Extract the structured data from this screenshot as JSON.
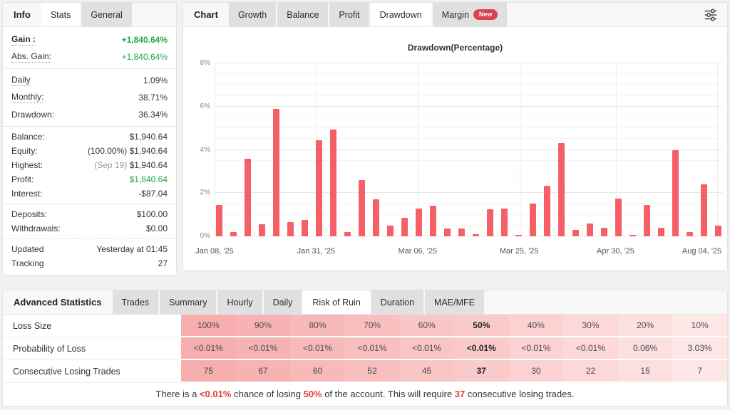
{
  "colors": {
    "green": "#21a84b",
    "bar_red": "#f55f66",
    "badge_red": "#d9424e",
    "note_red": "#e23b3b"
  },
  "left_panel": {
    "section_label": "Info",
    "tabs": [
      {
        "label": "Stats",
        "active": true
      },
      {
        "label": "General",
        "active": false
      }
    ],
    "stats": {
      "gain": {
        "label": "Gain :",
        "value": "+1,840.64%"
      },
      "abs_gain": {
        "label": "Abs. Gain:",
        "value": "+1,840.64%"
      },
      "daily": {
        "label": "Daily",
        "value": "1.09%"
      },
      "monthly": {
        "label": "Monthly:",
        "value": "38.71%"
      },
      "drawdown": {
        "label": "Drawdown:",
        "value": "36.34%"
      },
      "balance": {
        "label": "Balance:",
        "value": "$1,940.64"
      },
      "equity": {
        "label": "Equity:",
        "prefix": "(100.00%)",
        "value": "$1,940.64"
      },
      "highest": {
        "label": "Highest:",
        "prefix": "(Sep 19)",
        "value": "$1,940.64"
      },
      "profit": {
        "label": "Profit:",
        "value": "$1,840.64"
      },
      "interest": {
        "label": "Interest:",
        "value": "-$87.04"
      },
      "deposits": {
        "label": "Deposits:",
        "value": "$100.00"
      },
      "withdrawals": {
        "label": "Withdrawals:",
        "value": "$0.00"
      },
      "updated": {
        "label": "Updated",
        "value": "Yesterday at 01:45"
      },
      "tracking": {
        "label": "Tracking",
        "value": "27"
      }
    }
  },
  "chart_panel": {
    "section_label": "Chart",
    "tabs": [
      {
        "label": "Growth"
      },
      {
        "label": "Balance"
      },
      {
        "label": "Profit"
      },
      {
        "label": "Drawdown",
        "active": true
      },
      {
        "label": "Margin",
        "badge": "New"
      }
    ]
  },
  "chart_data": {
    "type": "bar",
    "title": "Drawdown(Percentage)",
    "xlabel": "",
    "ylabel": "",
    "ylim": [
      0,
      8
    ],
    "grid": true,
    "legend": false,
    "bar_color": "#f55f66",
    "y_ticks": [
      "0%",
      "2%",
      "4%",
      "6%",
      "8%"
    ],
    "y_tick_values": [
      0,
      2,
      4,
      6,
      8
    ],
    "minor_step": 0.5,
    "x_ticks": [
      "Jan 08, '25",
      "Jan 31, '25",
      "Mar 06, '25",
      "Mar 25, '25",
      "Apr 30, '25",
      "Aug 04, '25"
    ],
    "x_tick_pos_pct": [
      0,
      20,
      40,
      60,
      79,
      96
    ],
    "v_grid_pct": [
      20,
      40,
      60,
      79,
      99
    ],
    "values": [
      1.45,
      0.2,
      3.6,
      0.55,
      5.9,
      0.65,
      0.75,
      4.45,
      4.95,
      0.2,
      2.6,
      1.7,
      0.5,
      0.85,
      1.3,
      1.4,
      0.35,
      0.35,
      0.1,
      1.25,
      1.3,
      0.05,
      1.5,
      2.35,
      4.3,
      0.3,
      0.6,
      0.4,
      1.75,
      0.05,
      1.45,
      0.4,
      4.0,
      0.2,
      2.4,
      0.5
    ]
  },
  "advanced_panel": {
    "section_label": "Advanced Statistics",
    "tabs": [
      {
        "label": "Trades"
      },
      {
        "label": "Summary"
      },
      {
        "label": "Hourly"
      },
      {
        "label": "Daily"
      },
      {
        "label": "Risk of Ruin",
        "active": true
      },
      {
        "label": "Duration"
      },
      {
        "label": "MAE/MFE"
      }
    ],
    "risk_table": {
      "row_labels": [
        "Loss Size",
        "Probability of Loss",
        "Consecutive Losing Trades"
      ],
      "rows": [
        [
          "100%",
          "90%",
          "80%",
          "70%",
          "60%",
          "50%",
          "40%",
          "30%",
          "20%",
          "10%"
        ],
        [
          "<0.01%",
          "<0.01%",
          "<0.01%",
          "<0.01%",
          "<0.01%",
          "<0.01%",
          "<0.01%",
          "<0.01%",
          "0.06%",
          "3.03%"
        ],
        [
          "75",
          "67",
          "60",
          "52",
          "45",
          "37",
          "30",
          "22",
          "15",
          "7"
        ]
      ],
      "highlight_col": 5,
      "col_colors": [
        "#f7aeae",
        "#f7b3b3",
        "#f8b9b9",
        "#f9bfbf",
        "#f9c5c5",
        "#facaca",
        "#fbd1d1",
        "#fcd8d8",
        "#fcdfdf",
        "#fde7e7"
      ]
    },
    "note_parts": [
      {
        "text": "There is a ",
        "red": false
      },
      {
        "text": "<0.01%",
        "red": true
      },
      {
        "text": " chance of losing ",
        "red": false
      },
      {
        "text": "50%",
        "red": true
      },
      {
        "text": " of the account. This will require ",
        "red": false
      },
      {
        "text": "37",
        "red": true
      },
      {
        "text": " consecutive losing trades.",
        "red": false
      }
    ]
  }
}
